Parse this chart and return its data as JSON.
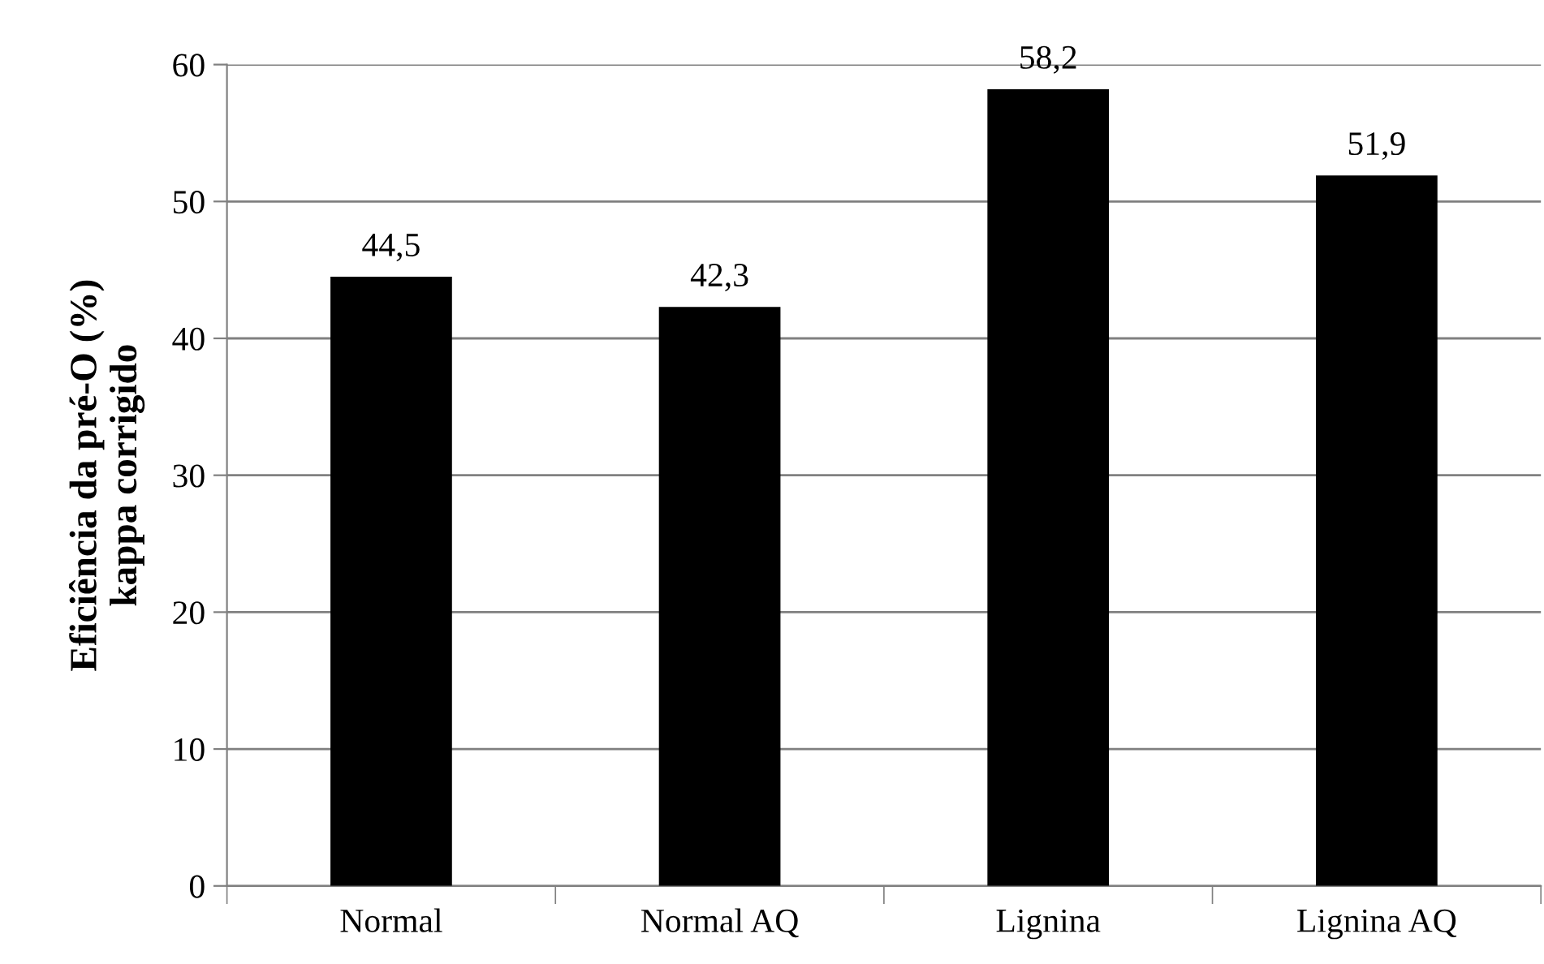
{
  "chart_data": {
    "type": "bar",
    "ylabel": "Eficiência da pré-O (%)\nkappa corrigido",
    "categories": [
      "Normal",
      "Normal AQ",
      "Lignina",
      "Lignina AQ"
    ],
    "values": [
      44.5,
      42.3,
      58.2,
      51.9
    ],
    "value_labels": [
      "44,5",
      "42,3",
      "58,2",
      "51,9"
    ],
    "color": "#000000",
    "ylim": [
      0,
      60
    ],
    "yticks": [
      0,
      10,
      20,
      30,
      40,
      50,
      60
    ],
    "grid": "y",
    "legend": false
  }
}
